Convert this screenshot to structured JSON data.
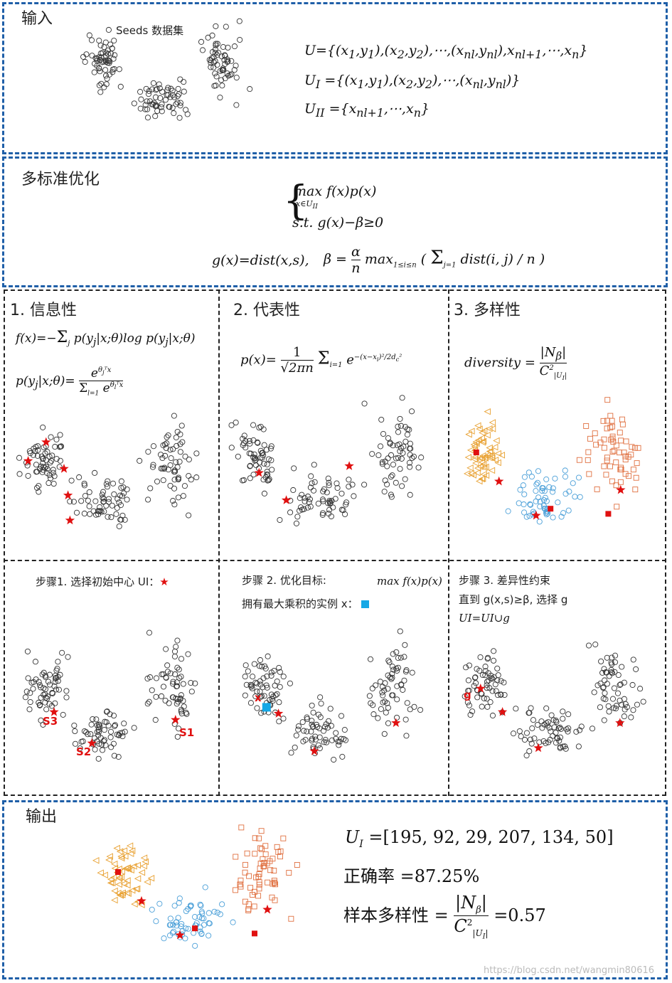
{
  "input": {
    "title": "输入",
    "dataset_label": "Seeds 数据集",
    "eq1": "U={(x1,y1),(x2,y2),⋯,(xnl,ynl),xnl+1,⋯,xn}",
    "eq2": "UI={(x1,y1),(x2,y2),⋯,(xnl,ynl)}",
    "eq3": "UII={xnl+1,⋯,xn}"
  },
  "multi": {
    "title": "多标准优化",
    "eq_max": "max f(x)p(x)",
    "eq_max_sub": "x∈UII",
    "eq_st": "s.t. g(x)−β≥0",
    "eq_g": "g(x)=dist(x,s),",
    "eq_beta": "β = α/n max1≤i≤n ( Σj=1..n dist(i,j)/n )"
  },
  "criteria": [
    {
      "title": "1. 信息性",
      "eq1": "f(x)=−Σj p(yj|x;θ)log p(yj|x;θ)",
      "eq2": "p(yj|x;θ)= e^(θjᵀx) / Σl=1..k e^(θlᵀx)"
    },
    {
      "title": "2. 代表性",
      "eq1": "p(x)= 1/√(2πn) Σi=1..n e^(−(x−xi)²/(2dc²))"
    },
    {
      "title": "3. 多样性",
      "eq1": "diversity = |Nβ| / C²|UI|"
    }
  ],
  "steps": [
    {
      "text": "步骤1. 选择初始中心 UI：",
      "labels": [
        "S3",
        "S2",
        "S1"
      ]
    },
    {
      "text": "步骤 2. 优化目标:",
      "formula": "max f(x)p(x)",
      "text2": "拥有最大乘积的实例 x：",
      "label": "x"
    },
    {
      "text": "步骤 3. 差异性约束",
      "text2": "直到 g(x,s)≥β,  选择 g",
      "text3": "UI=UI∪g",
      "label": "g"
    }
  ],
  "output": {
    "title": "输出",
    "ui": "UI =[195, 92, 29, 207, 134, 50]",
    "accuracy": "正确率 =87.25%",
    "diversity": "样本多样性 = |Nβ| / C²|UI| =0.57"
  },
  "watermark": "https://blog.csdn.net/wangmin80616",
  "colors": {
    "blue_border": "#1f5fa8",
    "star": "#e01010",
    "orange": "#e8a030",
    "square": "#e07040",
    "circle_blue": "#4a9fd8",
    "select_sq": "#15a8e6"
  }
}
